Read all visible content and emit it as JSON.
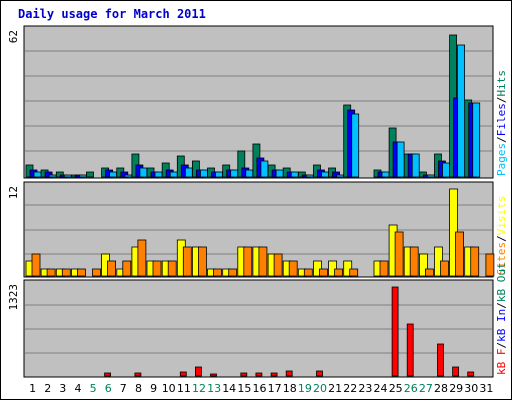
{
  "title": "Daily usage for March 2011",
  "chart_data": [
    {
      "type": "bar",
      "panel": "top",
      "ymax_label": "62",
      "ylim": [
        0,
        62
      ],
      "legend": [
        "Pages",
        "/",
        "Files",
        "/",
        "Hits"
      ],
      "colors": {
        "Hits": "#00805c",
        "Files": "#0000ff",
        "Pages": "#00c0ff"
      },
      "series": [
        {
          "name": "Hits",
          "values": [
            5,
            3,
            2,
            1,
            2,
            4,
            4,
            10,
            4,
            6,
            9,
            7,
            4,
            5,
            11,
            14,
            5,
            4,
            2,
            5,
            4,
            31,
            0,
            3,
            21,
            10,
            2,
            10,
            61,
            33,
            0
          ]
        },
        {
          "name": "Files",
          "values": [
            3,
            2,
            1,
            1,
            0,
            3,
            2,
            5,
            2,
            3,
            5,
            3,
            2,
            3,
            4,
            8,
            3,
            2,
            1,
            3,
            2,
            29,
            0,
            2,
            15,
            10,
            1,
            7,
            34,
            32,
            0
          ]
        },
        {
          "name": "Pages",
          "values": [
            2,
            1,
            1,
            1,
            0,
            2,
            1,
            4,
            2,
            2,
            4,
            3,
            2,
            3,
            3,
            7,
            3,
            2,
            1,
            2,
            1,
            27,
            0,
            2,
            15,
            10,
            1,
            6,
            57,
            32,
            0
          ]
        }
      ]
    },
    {
      "type": "bar",
      "panel": "middle",
      "ymax_label": "12",
      "ylim": [
        0,
        12
      ],
      "legend": [
        "Sites",
        "/",
        "Visits"
      ],
      "colors": {
        "Visits": "#ffff00",
        "Sites": "#ff8000"
      },
      "series": [
        {
          "name": "Visits",
          "values": [
            2,
            1,
            1,
            1,
            0,
            3,
            1,
            4,
            2,
            2,
            5,
            4,
            1,
            1,
            4,
            4,
            3,
            2,
            1,
            2,
            2,
            2,
            0,
            2,
            7,
            4,
            3,
            4,
            12,
            4,
            0
          ]
        },
        {
          "name": "Sites",
          "values": [
            3,
            1,
            1,
            1,
            1,
            2,
            2,
            5,
            2,
            2,
            4,
            4,
            1,
            1,
            4,
            4,
            3,
            2,
            1,
            1,
            1,
            1,
            0,
            2,
            6,
            4,
            1,
            2,
            6,
            4,
            3
          ]
        }
      ]
    },
    {
      "type": "bar",
      "panel": "bottom",
      "ymax_label": "1323",
      "ylim": [
        0,
        1323
      ],
      "legend": [
        "kB F",
        "/",
        "kB In",
        "/",
        "kB Out"
      ],
      "colors": {
        "kB F": "#ff0000"
      },
      "series": [
        {
          "name": "kB F",
          "values": [
            0,
            0,
            0,
            0,
            0,
            40,
            0,
            40,
            0,
            0,
            60,
            140,
            30,
            0,
            40,
            40,
            40,
            80,
            0,
            80,
            0,
            0,
            0,
            0,
            1323,
            780,
            0,
            480,
            140,
            60,
            0
          ]
        }
      ]
    }
  ],
  "x_labels": [
    "1",
    "2",
    "3",
    "4",
    "5",
    "6",
    "7",
    "8",
    "9",
    "10",
    "11",
    "12",
    "13",
    "14",
    "15",
    "16",
    "17",
    "18",
    "19",
    "20",
    "21",
    "22",
    "23",
    "24",
    "25",
    "26",
    "27",
    "28",
    "29",
    "30",
    "31"
  ],
  "weekend_days": [
    "5",
    "6",
    "12",
    "13",
    "19",
    "20",
    "26",
    "27"
  ]
}
